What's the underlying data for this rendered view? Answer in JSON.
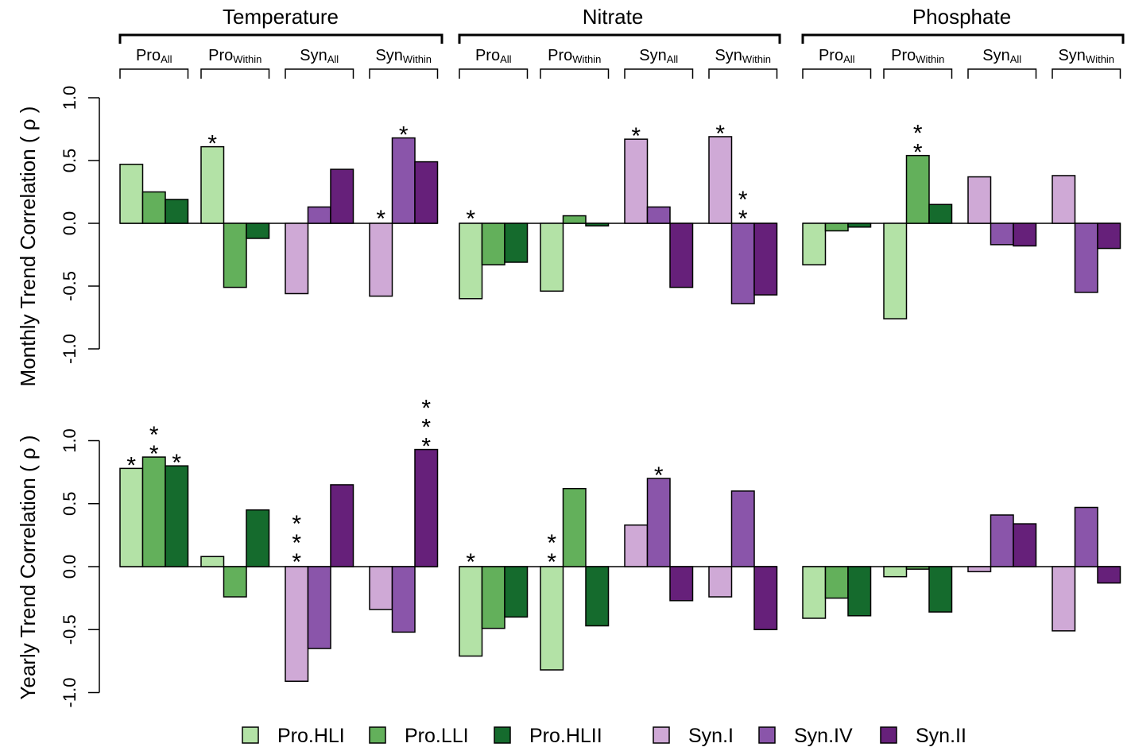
{
  "chart_data": {
    "type": "bar",
    "variables": [
      "Temperature",
      "Nitrate",
      "Phosphate"
    ],
    "group_labels": [
      {
        "base": "Pro",
        "sub": "All"
      },
      {
        "base": "Pro",
        "sub": "Within"
      },
      {
        "base": "Syn",
        "sub": "All"
      },
      {
        "base": "Syn",
        "sub": "Within"
      }
    ],
    "series": [
      {
        "name": "Pro.HLI",
        "color": "#b3e2a6"
      },
      {
        "name": "Pro.LLI",
        "color": "#63b05b"
      },
      {
        "name": "Pro.HLII",
        "color": "#156b2d"
      },
      {
        "name": "Syn.I",
        "color": "#cfa9d6"
      },
      {
        "name": "Syn.IV",
        "color": "#8a55aa"
      },
      {
        "name": "Syn.II",
        "color": "#66207a"
      }
    ],
    "y_ticks": [
      "-1.0",
      "-0.5",
      "0.0",
      "0.5",
      "1.0"
    ],
    "ylim": [
      -1.0,
      1.0
    ],
    "panels": [
      {
        "ylabel": "Monthly Trend Correlation ( ρ )",
        "groups": [
          [
            {
              "s": 0,
              "v": 0.47
            },
            {
              "s": 1,
              "v": 0.25
            },
            {
              "s": 2,
              "v": 0.19
            },
            {
              "s": 0,
              "v": 0.61,
              "sig": "*"
            },
            {
              "s": 1,
              "v": -0.51
            },
            {
              "s": 2,
              "v": -0.12
            },
            {
              "s": 3,
              "v": -0.56
            },
            {
              "s": 4,
              "v": 0.13
            },
            {
              "s": 5,
              "v": 0.43
            },
            {
              "s": 3,
              "v": -0.58,
              "sig": "*"
            },
            {
              "s": 4,
              "v": 0.68,
              "sig": "*"
            },
            {
              "s": 5,
              "v": 0.49
            }
          ],
          [
            {
              "s": 0,
              "v": -0.6,
              "sig": "*"
            },
            {
              "s": 1,
              "v": -0.33
            },
            {
              "s": 2,
              "v": -0.31
            },
            {
              "s": 0,
              "v": -0.54
            },
            {
              "s": 1,
              "v": 0.06
            },
            {
              "s": 2,
              "v": -0.02
            },
            {
              "s": 3,
              "v": 0.67,
              "sig": "*"
            },
            {
              "s": 4,
              "v": 0.13
            },
            {
              "s": 5,
              "v": -0.51
            },
            {
              "s": 3,
              "v": 0.69,
              "sig": "*"
            },
            {
              "s": 4,
              "v": -0.64,
              "sig": "**"
            },
            {
              "s": 5,
              "v": -0.57
            }
          ],
          [
            {
              "s": 0,
              "v": -0.33
            },
            {
              "s": 1,
              "v": -0.06
            },
            {
              "s": 2,
              "v": -0.03
            },
            {
              "s": 0,
              "v": -0.76
            },
            {
              "s": 1,
              "v": 0.54,
              "sig": "**"
            },
            {
              "s": 2,
              "v": 0.15
            },
            {
              "s": 3,
              "v": 0.37
            },
            {
              "s": 4,
              "v": -0.17
            },
            {
              "s": 5,
              "v": -0.18
            },
            {
              "s": 3,
              "v": 0.38
            },
            {
              "s": 4,
              "v": -0.55
            },
            {
              "s": 5,
              "v": -0.2
            }
          ]
        ]
      },
      {
        "ylabel": "Yearly Trend Correlation ( ρ )",
        "groups": [
          [
            {
              "s": 0,
              "v": 0.78,
              "sig": "*"
            },
            {
              "s": 1,
              "v": 0.87,
              "sig": "**"
            },
            {
              "s": 2,
              "v": 0.8,
              "sig": "*"
            },
            {
              "s": 0,
              "v": 0.08
            },
            {
              "s": 1,
              "v": -0.24
            },
            {
              "s": 2,
              "v": 0.45
            },
            {
              "s": 3,
              "v": -0.91,
              "sig": "***"
            },
            {
              "s": 4,
              "v": -0.65
            },
            {
              "s": 5,
              "v": 0.65
            },
            {
              "s": 3,
              "v": -0.34
            },
            {
              "s": 4,
              "v": -0.52
            },
            {
              "s": 5,
              "v": 0.93,
              "sig": "***"
            }
          ],
          [
            {
              "s": 0,
              "v": -0.71,
              "sig": "*"
            },
            {
              "s": 1,
              "v": -0.49
            },
            {
              "s": 2,
              "v": -0.4
            },
            {
              "s": 0,
              "v": -0.82,
              "sig": "**"
            },
            {
              "s": 1,
              "v": 0.62
            },
            {
              "s": 2,
              "v": -0.47
            },
            {
              "s": 3,
              "v": 0.33
            },
            {
              "s": 4,
              "v": 0.7,
              "sig": "*"
            },
            {
              "s": 5,
              "v": -0.27
            },
            {
              "s": 3,
              "v": -0.24
            },
            {
              "s": 4,
              "v": 0.6
            },
            {
              "s": 5,
              "v": -0.5
            }
          ],
          [
            {
              "s": 0,
              "v": -0.41
            },
            {
              "s": 1,
              "v": -0.25
            },
            {
              "s": 2,
              "v": -0.39
            },
            {
              "s": 0,
              "v": -0.08
            },
            {
              "s": 1,
              "v": -0.02
            },
            {
              "s": 2,
              "v": -0.36
            },
            {
              "s": 3,
              "v": -0.04
            },
            {
              "s": 4,
              "v": 0.41
            },
            {
              "s": 5,
              "v": 0.34
            },
            {
              "s": 3,
              "v": -0.51
            },
            {
              "s": 4,
              "v": 0.47
            },
            {
              "s": 5,
              "v": -0.13
            }
          ]
        ]
      }
    ]
  }
}
